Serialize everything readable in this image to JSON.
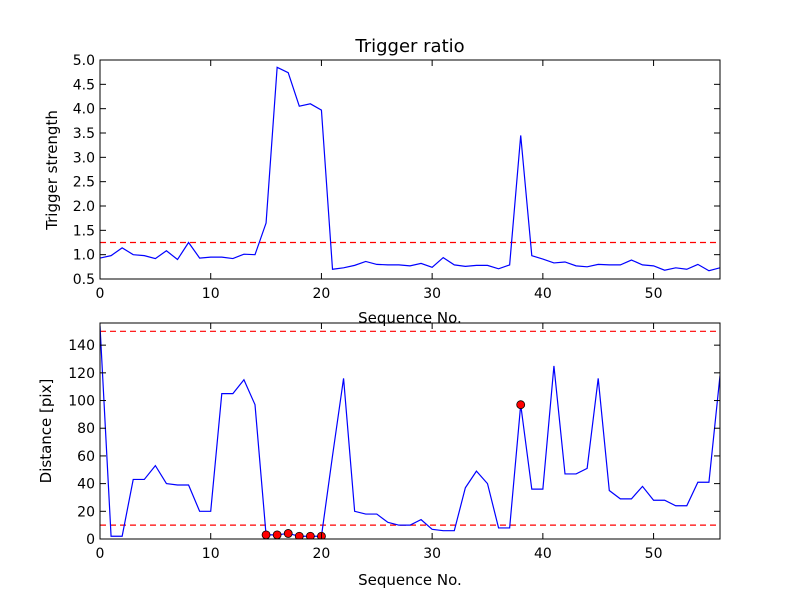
{
  "chart_data": [
    {
      "type": "line",
      "title": "Trigger ratio",
      "xlabel": "Sequence No.",
      "ylabel": "Trigger strength",
      "xlim": [
        0,
        56
      ],
      "ylim": [
        0.5,
        5.0
      ],
      "xticks": [
        0,
        10,
        20,
        30,
        40,
        50
      ],
      "yticks": [
        0.5,
        1.0,
        1.5,
        2.0,
        2.5,
        3.0,
        3.5,
        4.0,
        4.5,
        5.0
      ],
      "ytick_labels": [
        "0.5",
        "1.0",
        "1.5",
        "2.0",
        "2.5",
        "3.0",
        "3.5",
        "4.0",
        "4.5",
        "5.0"
      ],
      "grid": false,
      "series": [
        {
          "color": "#0000ff",
          "style": "solid",
          "x": [
            0,
            1,
            2,
            3,
            4,
            5,
            6,
            7,
            8,
            9,
            10,
            11,
            12,
            13,
            14,
            15,
            16,
            17,
            18,
            19,
            20,
            21,
            22,
            23,
            24,
            25,
            26,
            27,
            28,
            29,
            30,
            31,
            32,
            33,
            34,
            35,
            36,
            37,
            38,
            39,
            40,
            41,
            42,
            43,
            44,
            45,
            46,
            47,
            48,
            49,
            50,
            51,
            52,
            53,
            54,
            55,
            56
          ],
          "values": [
            0.93,
            0.98,
            1.14,
            1.0,
            0.98,
            0.92,
            1.08,
            0.9,
            1.25,
            0.93,
            0.95,
            0.95,
            0.92,
            1.01,
            1.0,
            1.65,
            4.85,
            4.74,
            4.05,
            4.1,
            3.97,
            0.7,
            0.73,
            0.78,
            0.86,
            0.8,
            0.79,
            0.79,
            0.77,
            0.82,
            0.74,
            0.94,
            0.79,
            0.76,
            0.78,
            0.78,
            0.71,
            0.79,
            3.45,
            0.98,
            0.91,
            0.83,
            0.85,
            0.77,
            0.75,
            0.8,
            0.79,
            0.79,
            0.89,
            0.79,
            0.77,
            0.68,
            0.73,
            0.7,
            0.8,
            0.67,
            0.73
          ]
        }
      ],
      "threshold_lines": [
        {
          "y": 1.25,
          "color": "#ff0000",
          "style": "dashed"
        }
      ]
    },
    {
      "type": "line",
      "title": "",
      "xlabel": "Sequence No.",
      "ylabel": "Distance [pix]",
      "xlim": [
        0,
        56
      ],
      "ylim": [
        0,
        156
      ],
      "xticks": [
        0,
        10,
        20,
        30,
        40,
        50
      ],
      "yticks": [
        0,
        20,
        40,
        60,
        80,
        100,
        120,
        140
      ],
      "ytick_labels": [
        "0",
        "20",
        "40",
        "60",
        "80",
        "100",
        "120",
        "140"
      ],
      "grid": false,
      "series": [
        {
          "color": "#0000ff",
          "style": "solid",
          "x": [
            0,
            1,
            2,
            3,
            4,
            5,
            6,
            7,
            8,
            9,
            10,
            11,
            12,
            13,
            14,
            15,
            16,
            17,
            18,
            19,
            20,
            21,
            22,
            23,
            24,
            25,
            26,
            27,
            28,
            29,
            30,
            31,
            32,
            33,
            34,
            35,
            36,
            37,
            38,
            39,
            40,
            41,
            42,
            43,
            44,
            45,
            46,
            47,
            48,
            49,
            50,
            51,
            52,
            53,
            54,
            55,
            56
          ],
          "values": [
            154,
            2,
            2,
            43,
            43,
            53,
            40,
            39,
            39,
            20,
            20,
            105,
            105,
            115,
            97,
            3,
            3,
            4,
            2,
            2,
            2,
            60,
            116,
            20,
            18,
            18,
            12,
            10,
            10,
            14,
            7,
            6,
            6,
            37,
            49,
            40,
            8,
            8,
            97,
            36,
            36,
            125,
            47,
            47,
            51,
            116,
            35,
            29,
            29,
            38,
            28,
            28,
            24,
            24,
            41,
            41,
            118
          ]
        },
        {
          "type": "scatter",
          "color": "#ff0000",
          "marker": "circle",
          "x": [
            15,
            16,
            17,
            18,
            19,
            20,
            38
          ],
          "values": [
            3,
            3,
            4,
            2,
            2,
            2,
            97
          ]
        }
      ],
      "threshold_lines": [
        {
          "y": 150,
          "color": "#ff0000",
          "style": "dashed"
        },
        {
          "y": 10,
          "color": "#ff0000",
          "style": "dashed"
        }
      ]
    }
  ]
}
